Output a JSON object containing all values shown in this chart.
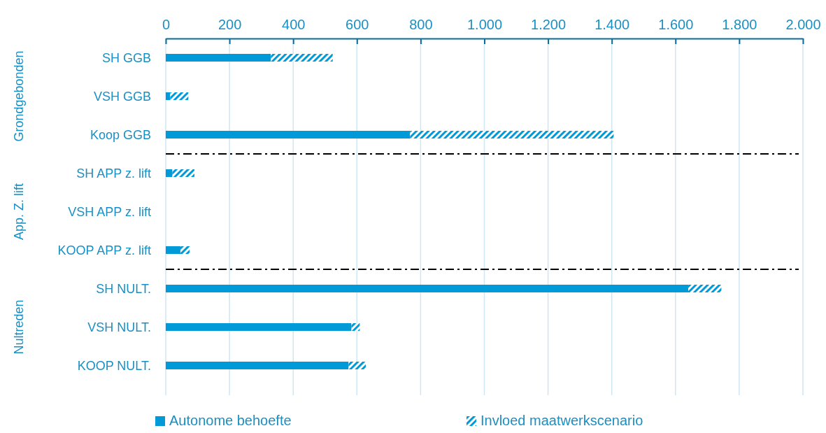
{
  "chart_data": {
    "type": "bar",
    "orientation": "horizontal",
    "stacked": true,
    "categories": [
      "SH GGB",
      "VSH GGB",
      "Koop GGB",
      "SH APP z. lift",
      "VSH APP z. lift",
      "KOOP APP z. lift",
      "SH NULT.",
      "VSH NULT.",
      "KOOP NULT."
    ],
    "series": [
      {
        "name": "Autonome behoefte",
        "color": "#009ad9",
        "values": [
          330,
          14,
          767,
          21,
          0,
          46,
          1640,
          583,
          574
        ]
      },
      {
        "name": "Invloed maatwerkscenario",
        "color": "#009ad9",
        "values": [
          194,
          57,
          639,
          69,
          0,
          29,
          104,
          26,
          54
        ]
      }
    ],
    "xlim": [
      0,
      2000
    ],
    "xticks": [
      0,
      200,
      400,
      600,
      800,
      {
        "value": 1000,
        "label": "1.000"
      },
      {
        "value": 1200,
        "label": "1.200"
      },
      {
        "value": 1400,
        "label": "1.400"
      },
      {
        "value": 1600,
        "label": "1.600"
      },
      {
        "value": 1800,
        "label": "1.800"
      },
      {
        "value": 2000,
        "label": "2.000"
      }
    ],
    "grid": "x",
    "legend": "bottom",
    "annotations": [
      "Grondgebonden",
      "App. Z. lift",
      "Nultreden"
    ]
  }
}
